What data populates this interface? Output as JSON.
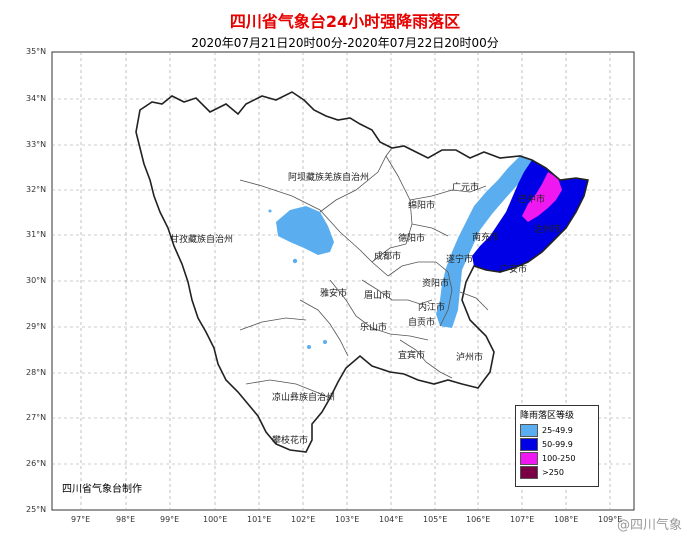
{
  "title": "四川省气象台24小时强降雨落区",
  "subtitle": "2020年07月21日20时00分-2020年07月22日20时00分",
  "lat_labels": [
    "35°N",
    "34°N",
    "33°N",
    "32°N",
    "31°N",
    "30°N",
    "29°N",
    "28°N",
    "27°N",
    "26°N",
    "25°N"
  ],
  "lon_labels": [
    "97°E",
    "98°E",
    "99°E",
    "100°E",
    "101°E",
    "102°E",
    "103°E",
    "104°E",
    "105°E",
    "106°E",
    "107°E",
    "108°E",
    "109°E"
  ],
  "regions": {
    "aba": "阿坝藏族羌族自治州",
    "ganzi": "甘孜藏族自治州",
    "liangshan": "凉山彝族自治州",
    "guangyuan": "广元市",
    "mianyang": "绵阳市",
    "deyang": "德阳市",
    "chengdu": "成都市",
    "suining": "遂宁市",
    "nanchong": "南充市",
    "dazhou": "达州市",
    "guangan": "广安市",
    "ziyang": "资阳市",
    "meishan": "眉山市",
    "yaan": "雅安市",
    "leshan": "乐山市",
    "neijiang": "内江市",
    "zigong": "自贡市",
    "yibin": "宜宾市",
    "luzhou": "泸州市",
    "panzhihua": "攀枝花市",
    "bazhong": "巴中市"
  },
  "legend": {
    "title": "降雨落区等级",
    "items": [
      {
        "label": "25-49.9",
        "color": "#5aaeef"
      },
      {
        "label": "50-99.9",
        "color": "#0000e6"
      },
      {
        "label": "100-250",
        "color": "#f018f0"
      },
      {
        "label": ">250",
        "color": "#7a0046"
      }
    ]
  },
  "credit": "四川省气象台制作",
  "watermark": "@四川气象"
}
